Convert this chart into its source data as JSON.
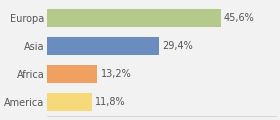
{
  "categories": [
    "America",
    "Africa",
    "Asia",
    "Europa"
  ],
  "values": [
    11.8,
    13.2,
    29.4,
    45.6
  ],
  "labels": [
    "11,8%",
    "13,2%",
    "29,4%",
    "45,6%"
  ],
  "bar_colors": [
    "#f5d97a",
    "#f0a060",
    "#6b8cbf",
    "#b5c98a"
  ],
  "background_color": "#f2f2f2",
  "xlim": [
    0,
    60
  ],
  "bar_height": 0.65,
  "label_fontsize": 7,
  "category_fontsize": 7
}
